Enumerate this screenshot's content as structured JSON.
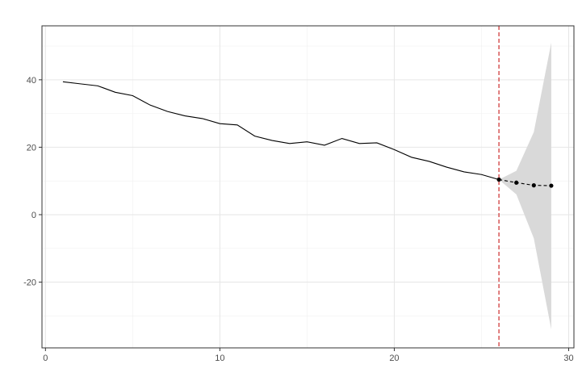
{
  "chart_data": {
    "type": "line",
    "title": "",
    "xlabel": "",
    "ylabel": "",
    "xlim": [
      -0.2,
      30.3
    ],
    "ylim": [
      -39.5,
      56
    ],
    "x_ticks": [
      0,
      10,
      20,
      30
    ],
    "y_ticks": [
      -20,
      0,
      20,
      40
    ],
    "x_tick_labels": [
      "0",
      "10",
      "20",
      "30"
    ],
    "y_tick_labels": [
      "-20",
      "0",
      "20",
      "40"
    ],
    "x_minor_ticks": [
      5,
      15,
      25
    ],
    "y_minor_ticks": [
      -30,
      -10,
      10,
      30,
      50
    ],
    "grid": true,
    "legend": "none",
    "series": [
      {
        "style": "solid-line",
        "color": "#000000",
        "x": [
          1,
          2,
          3,
          4,
          5,
          6,
          7,
          8,
          9,
          10,
          11,
          12,
          13,
          14,
          15,
          16,
          17,
          18,
          19,
          20,
          21,
          22,
          23,
          24,
          25,
          26
        ],
        "y": [
          39.4,
          38.8,
          38.2,
          36.3,
          35.3,
          32.5,
          30.6,
          29.3,
          28.5,
          27.0,
          26.6,
          23.3,
          22.0,
          21.1,
          21.6,
          20.6,
          22.6,
          21.1,
          21.3,
          19.3,
          17.0,
          15.8,
          14.1,
          12.7,
          11.9,
          10.4
        ]
      },
      {
        "style": "dashed-line-with-points",
        "color": "#000000",
        "x": [
          26,
          27,
          28,
          29
        ],
        "y": [
          10.4,
          9.5,
          8.7,
          8.6
        ]
      }
    ],
    "ribbon": {
      "color": "#d9d9d9",
      "x": [
        26,
        27,
        28,
        29
      ],
      "lower": [
        10.4,
        6.0,
        -7.0,
        -34.0
      ],
      "upper": [
        10.4,
        13.0,
        24.5,
        51.0
      ]
    },
    "vline": {
      "x": 26,
      "color": "#cc2b2b",
      "style": "dashed"
    }
  }
}
